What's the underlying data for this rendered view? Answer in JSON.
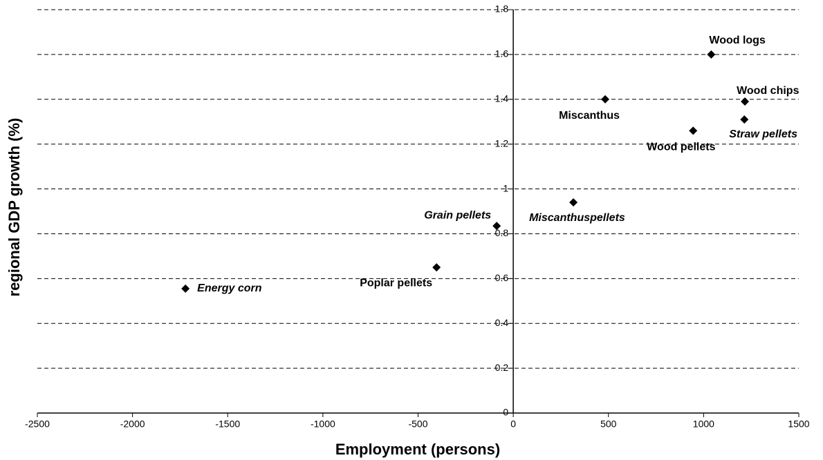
{
  "chart_data": {
    "type": "scatter",
    "x_label": "Employment (persons)",
    "y_label": "regional GDP growth (%)",
    "point_labels": [
      "Wood logs",
      "Wood chips",
      "Miscanthus",
      "Wood pellets",
      "Straw pellets",
      "Miscanthuspellets",
      "Grain pellets",
      "Poplar pellets",
      "Energy corn"
    ],
    "label_italic": [
      false,
      false,
      false,
      false,
      true,
      true,
      true,
      false,
      true
    ],
    "x": [
      1040,
      1217,
      483,
      945,
      1214,
      316,
      -87,
      -403,
      -1722
    ],
    "values": [
      1.6,
      1.39,
      1.4,
      1.26,
      1.31,
      0.94,
      0.835,
      0.65,
      0.555
    ],
    "color": "#000000",
    "marker": "diamond",
    "xlim": [
      -2500,
      1500
    ],
    "xticks": [
      -2500,
      -2000,
      -1500,
      -1000,
      -500,
      0,
      500,
      1000,
      1500
    ],
    "ylim": [
      0,
      1.8
    ],
    "yticks": [
      0,
      0.2,
      0.4,
      0.6,
      0.8,
      1,
      1.2,
      1.4,
      1.6,
      1.8
    ],
    "grid": true,
    "grid_style": "dashed"
  }
}
